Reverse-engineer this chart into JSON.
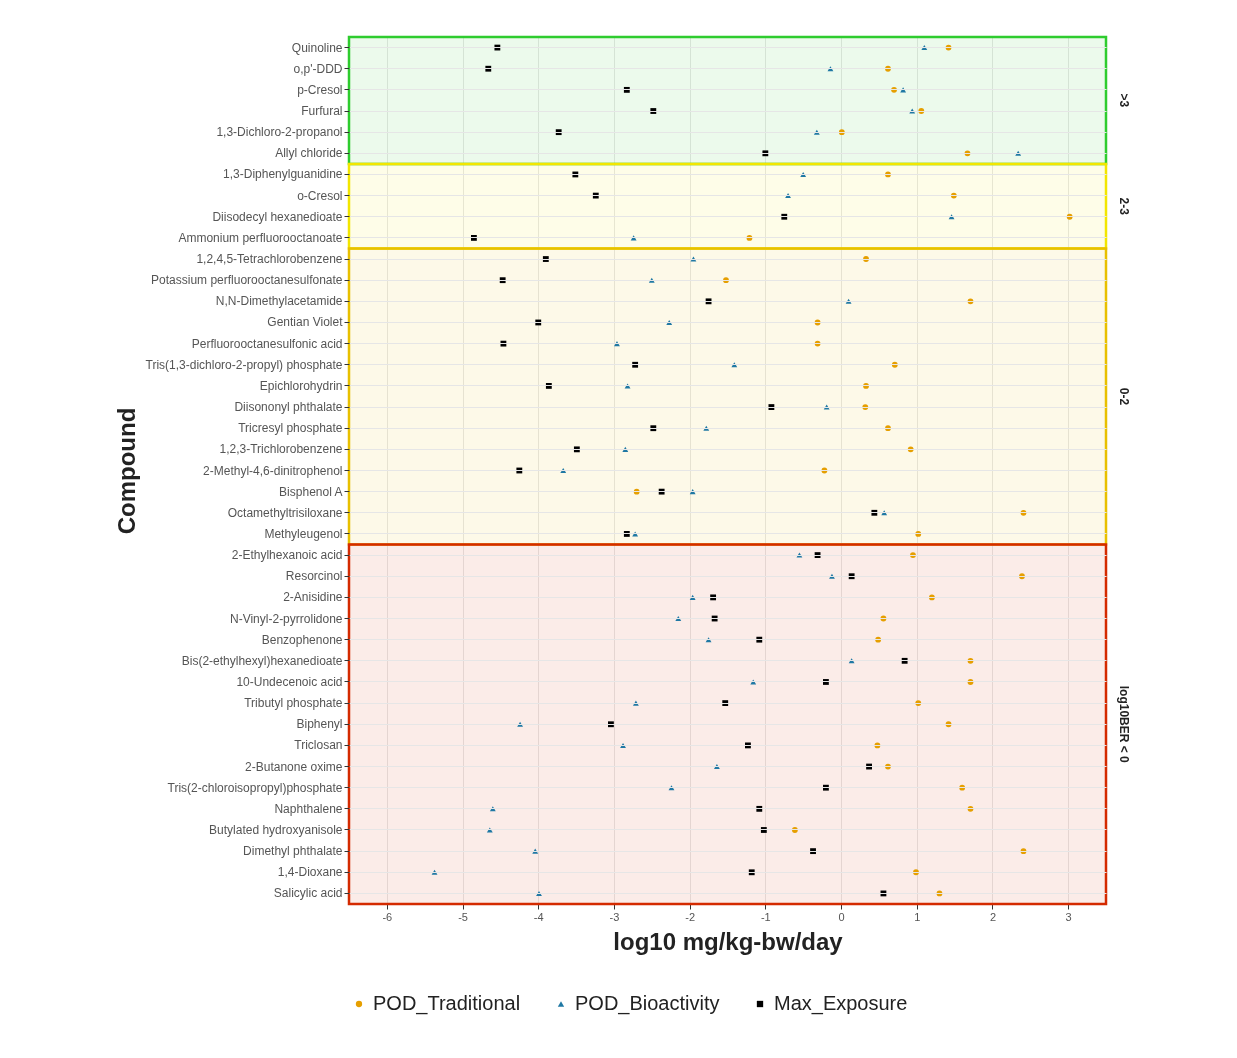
{
  "chart_data": {
    "type": "scatter",
    "orientation": "horizontal",
    "xlabel": "log10 mg/kg-bw/day",
    "ylabel": "Compound",
    "categories": [
      "Quinoline",
      "o,p'-DDD",
      "p-Cresol",
      "Furfural",
      "1,3-Dichloro-2-propanol",
      "Allyl chloride",
      "1,3-Diphenylguanidine",
      "o-Cresol",
      "Diisodecyl hexanedioate",
      "Ammonium perfluorooctanoate",
      "1,2,4,5-Tetrachlorobenzene",
      "Potassium perfluorooctanesulfonate",
      "N,N-Dimethylacetamide",
      "Gentian Violet",
      "Perfluorooctanesulfonic acid",
      "Tris(1,3-dichloro-2-propyl) phosphate",
      "Epichlorohydrin",
      "Diisononyl phthalate",
      "Tricresyl phosphate",
      "1,2,3-Trichlorobenzene",
      "2-Methyl-4,6-dinitrophenol",
      "Bisphenol A",
      "Octamethyltrisiloxane",
      "Methyleugenol",
      "2-Ethylhexanoic acid",
      "Resorcinol",
      "2-Anisidine",
      "N-Vinyl-2-pyrrolidone",
      "Benzophenone",
      "Bis(2-ethylhexyl)hexanedioate",
      "10-Undecenoic acid",
      "Tributyl phosphate",
      "Biphenyl",
      "Triclosan",
      "2-Butanone oxime",
      "Tris(2-chloroisopropyl)phosphate",
      "Naphthalene",
      "Butylated hydroxyanisole",
      "Dimethyl phthalate",
      "1,4-Dioxane",
      "Salicylic acid"
    ],
    "series": [
      {
        "name": "POD_Traditional",
        "color": "#e69f00",
        "marker": "circle",
        "values": [
          1.42,
          0.62,
          0.7,
          1.06,
          0.01,
          1.67,
          0.62,
          1.49,
          3.02,
          -1.21,
          0.33,
          -1.52,
          1.71,
          -0.31,
          -0.31,
          0.71,
          0.33,
          0.32,
          0.62,
          0.92,
          -0.22,
          -2.7,
          2.41,
          1.02,
          0.95,
          2.39,
          1.2,
          0.56,
          0.49,
          1.71,
          1.71,
          1.02,
          1.42,
          0.48,
          0.62,
          1.6,
          1.71,
          -0.61,
          2.41,
          0.99,
          1.3
        ]
      },
      {
        "name": "POD_Bioactivity",
        "color": "#1f78a4",
        "marker": "triangle",
        "values": [
          1.1,
          -0.14,
          0.82,
          0.94,
          -0.32,
          2.34,
          -0.5,
          -0.7,
          1.46,
          -2.74,
          -1.95,
          -2.5,
          0.1,
          -2.27,
          -2.96,
          -1.41,
          -2.82,
          -0.19,
          -1.78,
          -2.85,
          -3.67,
          -1.96,
          0.57,
          -2.72,
          -0.55,
          -0.12,
          -1.96,
          -2.15,
          -1.75,
          0.14,
          -1.16,
          -2.71,
          -4.24,
          -2.88,
          -1.64,
          -2.24,
          -4.6,
          -4.64,
          -4.04,
          -5.37,
          -3.99
        ]
      },
      {
        "name": "Max_Exposure",
        "color": "#000000",
        "marker": "square",
        "values": [
          -4.54,
          -4.66,
          -2.83,
          -2.48,
          -3.73,
          -1.0,
          -3.51,
          -3.24,
          -0.75,
          -4.85,
          -3.9,
          -4.47,
          -1.75,
          -4.0,
          -4.46,
          -2.72,
          -3.86,
          -0.92,
          -2.48,
          -3.49,
          -4.25,
          -2.37,
          0.44,
          -2.83,
          -0.31,
          0.14,
          -1.69,
          -1.67,
          -1.08,
          0.84,
          -0.2,
          -1.53,
          -3.04,
          -1.23,
          0.37,
          -0.2,
          -1.08,
          -1.02,
          -0.37,
          -1.18,
          0.56
        ]
      }
    ],
    "xlim": [
      -6.5,
      3.5
    ],
    "xticks": [
      -6,
      -5,
      -4,
      -3,
      -2,
      -1,
      0,
      1,
      2,
      3
    ],
    "bands": [
      {
        "axis": "y",
        "from": "Quinoline",
        "to": "Allyl chloride",
        "label": ">3",
        "color": "#2ecc2e"
      },
      {
        "axis": "y",
        "from": "1,3-Diphenylguanidine",
        "to": "Ammonium perfluorooctanoate",
        "label": "2-3",
        "color": "#f2e600"
      },
      {
        "axis": "y",
        "from": "1,2,4,5-Tetrachlorobenzene",
        "to": "Methyleugenol",
        "label": "0-2",
        "color": "#e8c000"
      },
      {
        "axis": "y",
        "from": "2-Ethylhexanoic acid",
        "to": "Salicylic acid",
        "label": "log10BER < 0",
        "color": "#d42a00"
      }
    ],
    "grid": true,
    "legend": "bottom"
  }
}
